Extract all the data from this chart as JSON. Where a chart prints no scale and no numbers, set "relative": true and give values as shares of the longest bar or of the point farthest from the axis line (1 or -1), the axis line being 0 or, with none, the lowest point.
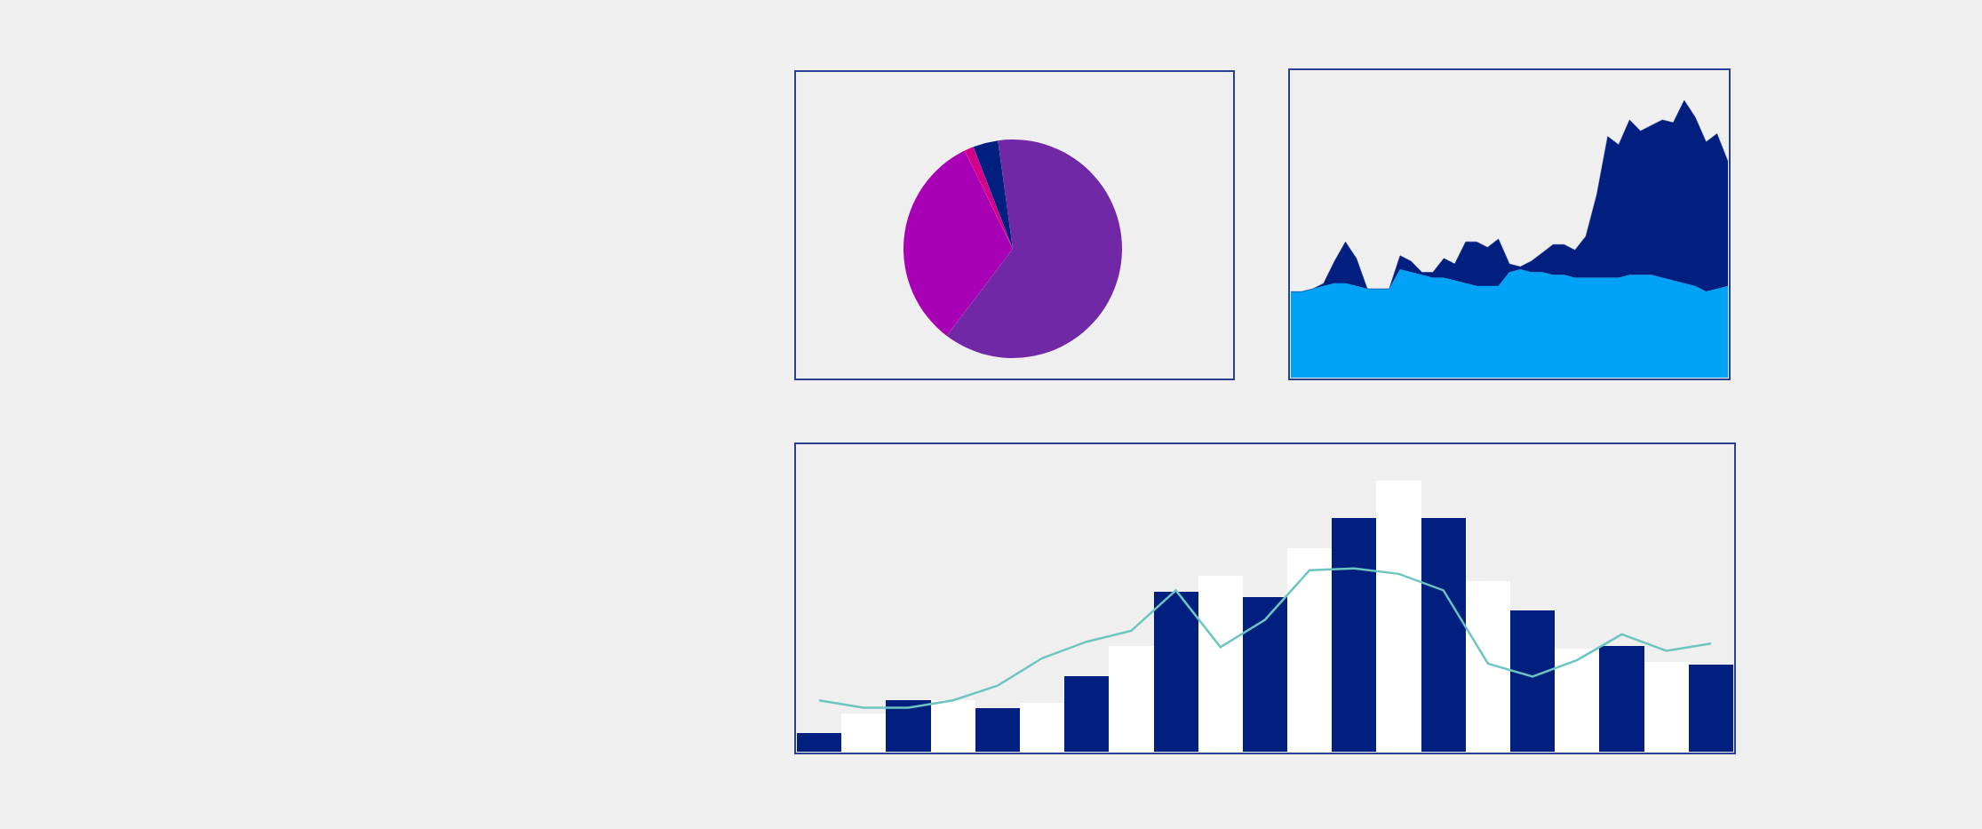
{
  "chart_data": [
    {
      "type": "pie",
      "categories": [
        null,
        null,
        null,
        null
      ],
      "values": [
        62.5,
        32.4,
        1.4,
        3.7
      ],
      "colors": [
        "#7028a6",
        "#a800b4",
        "#d4008a",
        "#001f7e"
      ]
    },
    {
      "type": "area",
      "stacked": true,
      "relative": true,
      "grid": false,
      "categories": [
        null,
        null,
        null,
        null,
        null,
        null,
        null,
        null,
        null,
        null,
        null,
        null,
        null,
        null,
        null,
        null,
        null,
        null,
        null,
        null,
        null,
        null,
        null,
        null,
        null,
        null,
        null,
        null,
        null,
        null,
        null,
        null,
        null,
        null,
        null,
        null,
        null,
        null,
        null,
        null,
        null
      ],
      "series": [
        {
          "color": "#00a2f5",
          "values": [
            0.31,
            0.31,
            0.32,
            0.33,
            0.34,
            0.34,
            0.33,
            0.32,
            0.32,
            0.32,
            0.39,
            0.38,
            0.37,
            0.36,
            0.36,
            0.35,
            0.34,
            0.33,
            0.33,
            0.33,
            0.38,
            0.39,
            0.38,
            0.38,
            0.37,
            0.37,
            0.36,
            0.36,
            0.36,
            0.36,
            0.36,
            0.37,
            0.37,
            0.37,
            0.36,
            0.35,
            0.34,
            0.33,
            0.31,
            0.32,
            0.33
          ]
        },
        {
          "color": "#001f7e",
          "values": [
            0,
            0,
            0,
            0.01,
            0.08,
            0.15,
            0.1,
            0,
            0,
            0,
            0.05,
            0.04,
            0.01,
            0.02,
            0.07,
            0.06,
            0.15,
            0.16,
            0.14,
            0.17,
            0.03,
            0.01,
            0.04,
            0.07,
            0.11,
            0.11,
            0.1,
            0.15,
            0.3,
            0.51,
            0.48,
            0.56,
            0.52,
            0.54,
            0.57,
            0.57,
            0.66,
            0.61,
            0.54,
            0.56,
            0.45
          ]
        }
      ]
    },
    {
      "type": "bar",
      "relative": true,
      "grid": false,
      "categories": [
        null,
        null,
        null,
        null,
        null,
        null,
        null,
        null,
        null,
        null,
        null,
        null,
        null,
        null,
        null,
        null,
        null,
        null,
        null,
        null,
        null
      ],
      "colors": [
        "#001f7e",
        "#ffffff",
        "#001f7e",
        "#ffffff",
        "#001f7e",
        "#ffffff",
        "#001f7e",
        "#ffffff",
        "#001f7e",
        "#ffffff",
        "#001f7e",
        "#ffffff",
        "#001f7e",
        "#ffffff",
        "#001f7e",
        "#ffffff",
        "#001f7e",
        "#ffffff",
        "#001f7e",
        "#ffffff",
        "#001f7e"
      ],
      "values": [
        0.07,
        0.14,
        0.19,
        0.19,
        0.16,
        0.18,
        0.28,
        0.39,
        0.59,
        0.65,
        0.57,
        0.75,
        0.86,
        1,
        0.86,
        0.63,
        0.52,
        0.38,
        0.39,
        0.33,
        0.32
      ]
    },
    {
      "type": "line",
      "relative": true,
      "grid": false,
      "marker": "none",
      "color": "#6cc5c0",
      "categories": [
        null,
        null,
        null,
        null,
        null,
        null,
        null,
        null,
        null,
        null,
        null,
        null,
        null,
        null,
        null,
        null,
        null,
        null,
        null,
        null,
        null
      ],
      "values": [
        0.28,
        0.24,
        0.24,
        0.28,
        0.36,
        0.51,
        0.6,
        0.66,
        0.88,
        0.57,
        0.72,
        0.99,
        1,
        0.97,
        0.88,
        0.48,
        0.41,
        0.5,
        0.64,
        0.55,
        0.59
      ]
    }
  ]
}
